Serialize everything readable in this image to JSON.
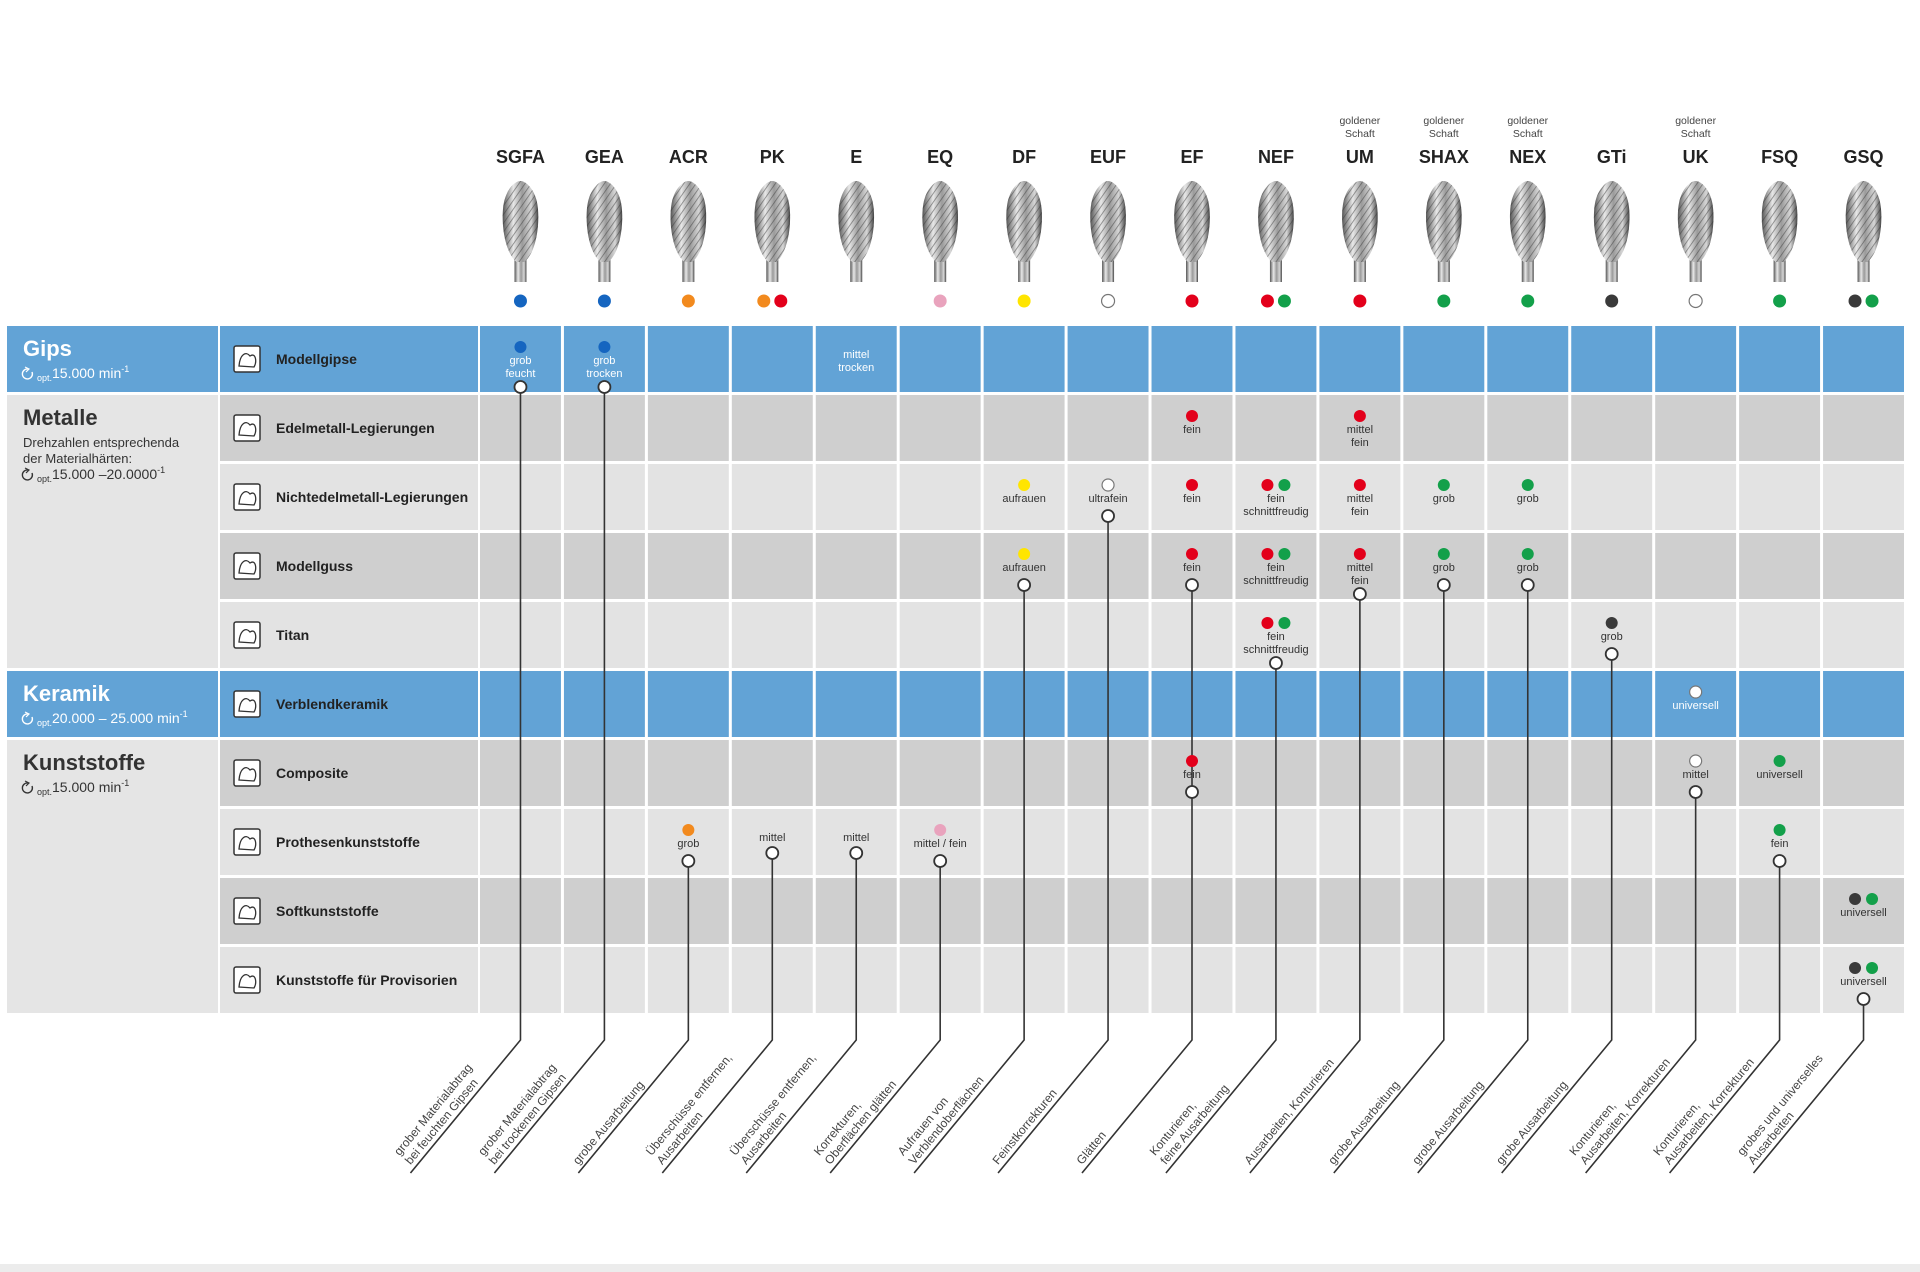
{
  "tools": [
    {
      "name": "SGFA",
      "dots": [
        "#1565c0"
      ],
      "description": [
        "grober Materialabtrag",
        "bei feuchten Gipsen"
      ]
    },
    {
      "name": "GEA",
      "dots": [
        "#1565c0"
      ],
      "description": [
        "grober Materialabtrag",
        "bei trockenen Gipsen"
      ]
    },
    {
      "name": "ACR",
      "dots": [
        "#f28a1e"
      ],
      "description": [
        "grobe Ausarbeitung"
      ]
    },
    {
      "name": "PK",
      "dots": [
        "#f28a1e",
        "#e3001b"
      ],
      "description": [
        "Überschüsse entfernen,",
        "Ausarbeiten"
      ]
    },
    {
      "name": "E",
      "dots": [],
      "description": [
        "Überschüsse entfernen,",
        "Ausarbeiten"
      ]
    },
    {
      "name": "EQ",
      "dots": [
        "#e9a3bd"
      ],
      "description": [
        "Korrekturen,",
        "Oberflächen glätten"
      ]
    },
    {
      "name": "DF",
      "dots": [
        "#ffe500"
      ],
      "description": [
        "Aufrauen von",
        "Verblendoberflächen"
      ]
    },
    {
      "name": "EUF",
      "dots": [
        "#ffffff"
      ],
      "description": [
        "Feinstkorrekturen"
      ]
    },
    {
      "name": "EF",
      "dots": [
        "#e3001b"
      ],
      "description": [
        "Glätten"
      ]
    },
    {
      "name": "NEF",
      "dots": [
        "#e3001b",
        "#13a04a"
      ],
      "description": [
        "Konturieren,",
        "feine Ausarbeitung"
      ]
    },
    {
      "name": "UM",
      "note": [
        "goldener",
        "Schaft"
      ],
      "dots": [
        "#e3001b"
      ],
      "description": [
        "Ausarbeiten, Konturieren"
      ]
    },
    {
      "name": "SHAX",
      "note": [
        "goldener",
        "Schaft"
      ],
      "dots": [
        "#13a04a"
      ],
      "description": [
        "grobe Ausarbeitung"
      ]
    },
    {
      "name": "NEX",
      "note": [
        "goldener",
        "Schaft"
      ],
      "dots": [
        "#13a04a"
      ],
      "description": [
        "grobe Ausarbeitung"
      ]
    },
    {
      "name": "GTi",
      "dots": [
        "#3a3a3a"
      ],
      "description": [
        "grobe Ausarbeitung"
      ]
    },
    {
      "name": "UK",
      "note": [
        "goldener",
        "Schaft"
      ],
      "dots": [
        "#ffffff"
      ],
      "description": [
        "Konturieren,",
        "Ausarbeiten, Korrekturen"
      ]
    },
    {
      "name": "FSQ",
      "dots": [
        "#13a04a"
      ],
      "description": [
        "Konturieren,",
        "Ausarbeiten, Korrekturen"
      ]
    },
    {
      "name": "GSQ",
      "dots": [
        "#3a3a3a",
        "#13a04a"
      ],
      "description": [
        "grobes und universelles",
        "Ausarbeiten"
      ]
    }
  ],
  "groups": [
    {
      "title": "Gips",
      "speed": {
        "prefix": "opt.",
        "value": "15.000 min",
        "exp": "-1"
      },
      "color": "#62a3d6",
      "text_color": "#ffffff",
      "row_colors": [
        "#62a3d6"
      ],
      "rows": [
        {
          "label": "Modellgipse",
          "cells": [
            {
              "dots": [
                "#1565c0"
              ],
              "text": [
                "grob",
                "feucht"
              ],
              "ring": true
            },
            {
              "dots": [
                "#1565c0"
              ],
              "text": [
                "grob",
                "trocken"
              ],
              "ring": true
            },
            null,
            null,
            {
              "dots": [],
              "text": [
                "mittel",
                "trocken"
              ]
            },
            null,
            null,
            null,
            null,
            null,
            null,
            null,
            null,
            null,
            null,
            null,
            null
          ]
        }
      ]
    },
    {
      "title": "Metalle",
      "description": [
        "Drehzahlen entsprechenda",
        "der Materialhärten:"
      ],
      "speed": {
        "prefix": "opt.",
        "value": "15.000 –20.0000",
        "exp": "-1"
      },
      "color": "#e5e5e5",
      "text_color": "#333333",
      "row_colors": [
        "#cfcfcf",
        "#e3e3e3"
      ],
      "rows": [
        {
          "label": "Edelmetall-Legierungen",
          "cells": [
            null,
            null,
            null,
            null,
            null,
            null,
            null,
            null,
            {
              "dots": [
                "#e3001b"
              ],
              "text": [
                "fein"
              ]
            },
            null,
            {
              "dots": [
                "#e3001b"
              ],
              "text": [
                "mittel",
                "fein"
              ]
            },
            null,
            null,
            null,
            null,
            null,
            null
          ]
        },
        {
          "label": "Nichtedelmetall-Legierungen",
          "cells": [
            null,
            null,
            null,
            null,
            null,
            null,
            {
              "dots": [
                "#ffe500"
              ],
              "text": [
                "aufrauen"
              ]
            },
            {
              "dots": [
                "#ffffff"
              ],
              "text": [
                "ultrafein"
              ],
              "ring": true
            },
            {
              "dots": [
                "#e3001b"
              ],
              "text": [
                "fein"
              ]
            },
            {
              "dots": [
                "#e3001b",
                "#13a04a"
              ],
              "text": [
                "fein",
                "schnittfreudig"
              ]
            },
            {
              "dots": [
                "#e3001b"
              ],
              "text": [
                "mittel",
                "fein"
              ]
            },
            {
              "dots": [
                "#13a04a"
              ],
              "text": [
                "grob"
              ]
            },
            {
              "dots": [
                "#13a04a"
              ],
              "text": [
                "grob"
              ]
            },
            null,
            null,
            null,
            null
          ]
        },
        {
          "label": "Modellguss",
          "cells": [
            null,
            null,
            null,
            null,
            null,
            null,
            {
              "dots": [
                "#ffe500"
              ],
              "text": [
                "aufrauen"
              ],
              "ring": true
            },
            null,
            {
              "dots": [
                "#e3001b"
              ],
              "text": [
                "fein"
              ],
              "ring": true
            },
            {
              "dots": [
                "#e3001b",
                "#13a04a"
              ],
              "text": [
                "fein",
                "schnittfreudig"
              ]
            },
            {
              "dots": [
                "#e3001b"
              ],
              "text": [
                "mittel",
                "fein"
              ],
              "ring": true
            },
            {
              "dots": [
                "#13a04a"
              ],
              "text": [
                "grob"
              ],
              "ring": true
            },
            {
              "dots": [
                "#13a04a"
              ],
              "text": [
                "grob"
              ],
              "ring": true
            },
            null,
            null,
            null,
            null
          ]
        },
        {
          "label": "Titan",
          "cells": [
            null,
            null,
            null,
            null,
            null,
            null,
            null,
            null,
            null,
            {
              "dots": [
                "#e3001b",
                "#13a04a"
              ],
              "text": [
                "fein",
                "schnittfreudig"
              ],
              "ring": true
            },
            null,
            null,
            null,
            {
              "dots": [
                "#3a3a3a"
              ],
              "text": [
                "grob"
              ],
              "ring": true
            },
            null,
            null,
            null
          ]
        }
      ]
    },
    {
      "title": "Keramik",
      "speed": {
        "prefix": "opt.",
        "value": "20.000 – 25.000 min",
        "exp": "-1"
      },
      "color": "#62a3d6",
      "text_color": "#ffffff",
      "row_colors": [
        "#62a3d6"
      ],
      "rows": [
        {
          "label": "Verblendkeramik",
          "cells": [
            null,
            null,
            null,
            null,
            null,
            null,
            null,
            null,
            null,
            null,
            null,
            null,
            null,
            null,
            {
              "dots": [
                "#ffffff"
              ],
              "text": [
                "universell"
              ]
            },
            null,
            null
          ]
        }
      ]
    },
    {
      "title": "Kunststoffe",
      "speed": {
        "prefix": "opt.",
        "value": "15.000 min",
        "exp": "-1"
      },
      "color": "#e5e5e5",
      "text_color": "#333333",
      "row_colors": [
        "#cfcfcf",
        "#e3e3e3"
      ],
      "rows": [
        {
          "label": "Composite",
          "cells": [
            null,
            null,
            null,
            null,
            null,
            null,
            null,
            null,
            {
              "dots": [
                "#e3001b"
              ],
              "text": [
                "fein"
              ],
              "ring": true
            },
            null,
            null,
            null,
            null,
            null,
            {
              "dots": [
                "#ffffff"
              ],
              "text": [
                "mittel"
              ],
              "ring": true
            },
            {
              "dots": [
                "#13a04a"
              ],
              "text": [
                "universell"
              ]
            },
            null
          ]
        },
        {
          "label": "Prothesenkunststoffe",
          "cells": [
            null,
            null,
            {
              "dots": [
                "#f28a1e"
              ],
              "text": [
                "grob"
              ],
              "ring": true
            },
            {
              "dots": [],
              "text": [
                "mittel"
              ],
              "ring": true
            },
            {
              "dots": [],
              "text": [
                "mittel"
              ],
              "ring": true
            },
            {
              "dots": [
                "#e9a3bd"
              ],
              "text": [
                "mittel / fein"
              ],
              "ring": true
            },
            null,
            null,
            null,
            null,
            null,
            null,
            null,
            null,
            null,
            {
              "dots": [
                "#13a04a"
              ],
              "text": [
                "fein"
              ],
              "ring": true
            },
            null
          ]
        },
        {
          "label": "Softkunststoffe",
          "cells": [
            null,
            null,
            null,
            null,
            null,
            null,
            null,
            null,
            null,
            null,
            null,
            null,
            null,
            null,
            null,
            null,
            {
              "dots": [
                "#3a3a3a",
                "#13a04a"
              ],
              "text": [
                "universell"
              ]
            }
          ]
        },
        {
          "label": "Kunststoffe für Provisorien",
          "cells": [
            null,
            null,
            null,
            null,
            null,
            null,
            null,
            null,
            null,
            null,
            null,
            null,
            null,
            null,
            null,
            null,
            {
              "dots": [
                "#3a3a3a",
                "#13a04a"
              ],
              "text": [
                "universell"
              ],
              "ring": true
            }
          ]
        }
      ]
    }
  ]
}
